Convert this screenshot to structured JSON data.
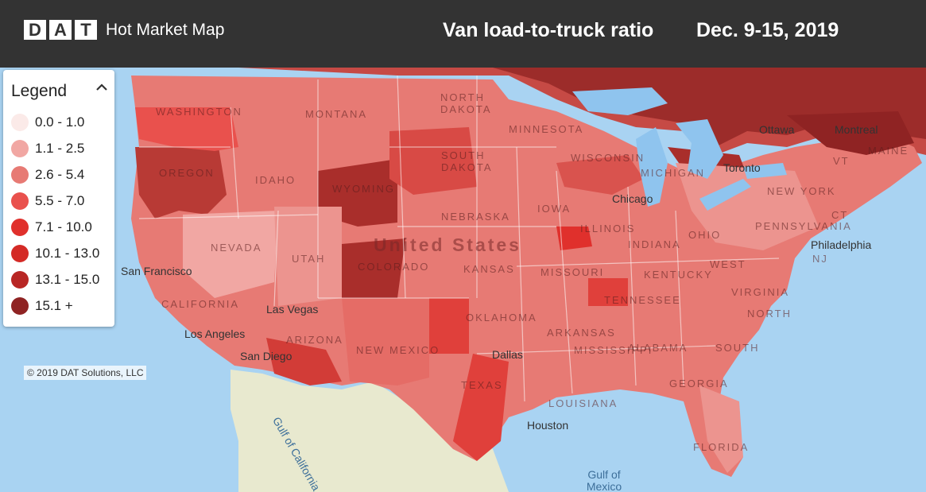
{
  "header": {
    "logo_letters": [
      "D",
      "A",
      "T"
    ],
    "app_title": "Hot Market Map",
    "map_title": "Van load-to-truck ratio",
    "date_range": "Dec. 9-15, 2019"
  },
  "legend": {
    "title": "Legend",
    "toggle_icon": "chevron-up-icon",
    "items": [
      {
        "label": "0.0 - 1.0",
        "color": "#fbeae8"
      },
      {
        "label": "1.1 - 2.5",
        "color": "#f1a7a3"
      },
      {
        "label": "2.6 - 5.4",
        "color": "#e77a74"
      },
      {
        "label": "5.5 - 7.0",
        "color": "#e9514d"
      },
      {
        "label": "7.1 - 10.0",
        "color": "#e0302c"
      },
      {
        "label": "10.1 - 13.0",
        "color": "#d42a26"
      },
      {
        "label": "13.1 - 15.0",
        "color": "#b82624"
      },
      {
        "label": "15.1 +",
        "color": "#8f2323"
      }
    ]
  },
  "copyright": "© 2019 DAT Solutions, LLC",
  "map": {
    "country_label": "United States",
    "cities": [
      "San Francisco",
      "Las Vegas",
      "Los Angeles",
      "San Diego",
      "Dallas",
      "Houston",
      "Chicago",
      "Philadelphia",
      "Toronto",
      "Ottawa",
      "Montreal"
    ],
    "states": [
      "WASHINGTON",
      "OREGON",
      "IDAHO",
      "MONTANA",
      "WYOMING",
      "NORTH DAKOTA",
      "SOUTH DAKOTA",
      "NEBRASKA",
      "KANSAS",
      "NEVADA",
      "UTAH",
      "COLORADO",
      "CALIFORNIA",
      "ARIZONA",
      "NEW MEXICO",
      "TEXAS",
      "OKLAHOMA",
      "MISSOURI",
      "ARKANSAS",
      "LOUISIANA",
      "MISSISSIPPI",
      "ALABAMA",
      "GEORGIA",
      "FLORIDA",
      "TENNESSEE",
      "KENTUCKY",
      "ILLINOIS",
      "INDIANA",
      "OHIO",
      "IOWA",
      "MINNESOTA",
      "WISCONSIN",
      "MICHIGAN",
      "PENNSYLVANIA",
      "NEW YORK",
      "VIRGINIA",
      "WEST",
      "NORTH",
      "SOUTH",
      "NJ",
      "MAINE",
      "VT",
      "CT"
    ],
    "water_bodies": [
      "Gulf of California",
      "Gulf of\nMexico"
    ],
    "colors": {
      "ocean": "#a9d3f2",
      "mexico": "#e8e9cf",
      "canada": "#9c2c2a",
      "great_lakes": "#8fc4ee"
    }
  }
}
